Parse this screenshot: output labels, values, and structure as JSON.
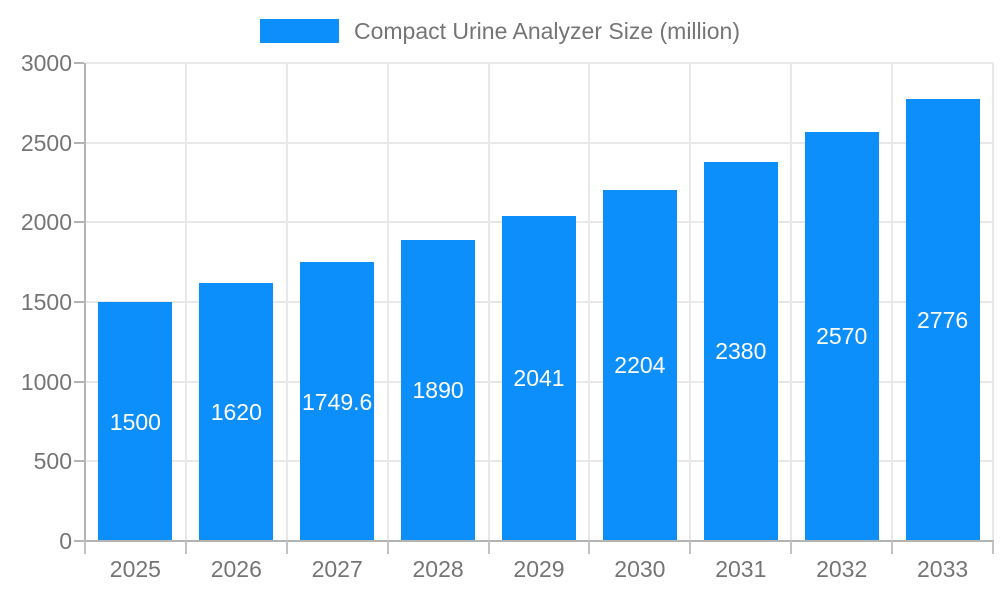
{
  "chart_data": {
    "type": "bar",
    "title": "Compact Urine Analyzer Size (million)",
    "legend": {
      "position": "top-center",
      "entries": [
        "Compact Urine Analyzer Size (million)"
      ]
    },
    "categories": [
      "2025",
      "2026",
      "2027",
      "2028",
      "2029",
      "2030",
      "2031",
      "2032",
      "2033"
    ],
    "values": [
      1500,
      1620,
      1749.6,
      1890,
      2041,
      2204,
      2380,
      2570,
      2776
    ],
    "value_labels": [
      "1500",
      "1620",
      "1749.6",
      "1890",
      "2041",
      "2204",
      "2380",
      "2570",
      "2776"
    ],
    "xlabel": "",
    "ylabel": "",
    "ylim": [
      0,
      3000
    ],
    "y_ticks": [
      0,
      500,
      1000,
      1500,
      2000,
      2500,
      3000
    ],
    "grid": true,
    "colors": {
      "bar": "#0d8ffb",
      "bar_value_text": "#ffffff",
      "tick_label_text": "#757575",
      "legend_text": "#757575",
      "grid_line": "#e8e8e8",
      "axis_line": "#b3b3b3",
      "tick_mark": "#c2c2c2",
      "background": "#ffffff"
    }
  }
}
